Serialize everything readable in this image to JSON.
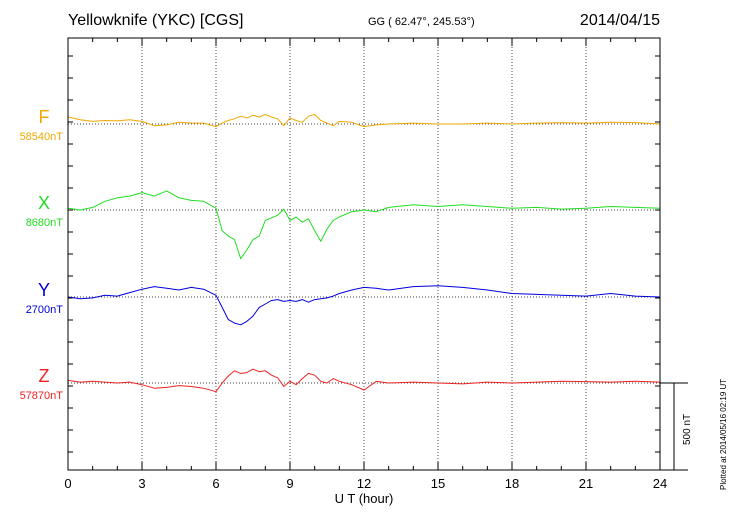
{
  "header": {
    "station": "Yellowknife (YKC)  [CGS]",
    "coordinates": "GG ( 62.47°, 245.53°)",
    "date": "2014/04/15"
  },
  "plotted_note": "Plotted at 2014/05/16 02:19 UT",
  "scale_bar_label": "500 nT",
  "chart_data": {
    "type": "line",
    "xlabel": "U T (hour)",
    "xlim": [
      0,
      24
    ],
    "xticks": [
      0,
      3,
      6,
      9,
      12,
      15,
      18,
      21,
      24
    ],
    "ylabel": "",
    "y_units": "nT offset from baseline",
    "scale_bar_nT": 500,
    "grid": true,
    "series": [
      {
        "name": "F",
        "baseline_label": "58540nT",
        "baseline_nT": 58540,
        "color": "#f0a800",
        "x": [
          0,
          0.5,
          1,
          1.5,
          2,
          2.5,
          3,
          3.5,
          4,
          4.5,
          5,
          5.5,
          6,
          6.25,
          6.5,
          6.75,
          7,
          7.25,
          7.5,
          7.75,
          8,
          8.25,
          8.5,
          8.75,
          9,
          9.25,
          9.5,
          9.75,
          10,
          10.25,
          10.5,
          10.75,
          11,
          11.5,
          12,
          12.5,
          13,
          14,
          15,
          16,
          17,
          18,
          19,
          20,
          21,
          22,
          23,
          24
        ],
        "values": [
          40,
          25,
          15,
          20,
          18,
          25,
          15,
          -10,
          -5,
          10,
          5,
          5,
          -15,
          5,
          20,
          30,
          45,
          35,
          50,
          40,
          55,
          40,
          30,
          -10,
          35,
          20,
          10,
          45,
          55,
          20,
          5,
          -10,
          15,
          10,
          -15,
          -5,
          0,
          5,
          0,
          0,
          5,
          0,
          5,
          8,
          5,
          10,
          8,
          0
        ]
      },
      {
        "name": "X",
        "baseline_label": "8680nT",
        "baseline_nT": 8680,
        "color": "#22dd22",
        "x": [
          0,
          0.5,
          1,
          1.5,
          2,
          2.5,
          3,
          3.5,
          4,
          4.5,
          5,
          5.5,
          6,
          6.25,
          6.5,
          6.75,
          7,
          7.25,
          7.5,
          7.75,
          8,
          8.25,
          8.5,
          8.75,
          9,
          9.25,
          9.5,
          9.75,
          10,
          10.25,
          10.5,
          10.75,
          11,
          11.5,
          12,
          12.5,
          13,
          14,
          15,
          16,
          17,
          18,
          19,
          20,
          21,
          22,
          23,
          24
        ],
        "values": [
          10,
          0,
          15,
          50,
          70,
          80,
          100,
          80,
          110,
          70,
          55,
          50,
          10,
          -120,
          -150,
          -170,
          -280,
          -230,
          -170,
          -150,
          -60,
          -45,
          -30,
          5,
          -60,
          -40,
          -70,
          -50,
          -120,
          -180,
          -110,
          -60,
          -40,
          -10,
          0,
          -10,
          15,
          30,
          20,
          30,
          20,
          10,
          15,
          5,
          10,
          20,
          15,
          10
        ]
      },
      {
        "name": "Y",
        "baseline_label": "2700nT",
        "baseline_nT": 2700,
        "color": "#0000dd",
        "x": [
          0,
          0.5,
          1,
          1.5,
          2,
          2.5,
          3,
          3.5,
          4,
          4.5,
          5,
          5.5,
          6,
          6.25,
          6.5,
          6.75,
          7,
          7.25,
          7.5,
          7.75,
          8,
          8.25,
          8.5,
          8.75,
          9,
          9.25,
          9.5,
          9.75,
          10,
          10.25,
          10.5,
          10.75,
          11,
          11.5,
          12,
          12.5,
          13,
          14,
          15,
          16,
          17,
          18,
          19,
          20,
          21,
          22,
          23,
          24
        ],
        "values": [
          0,
          -10,
          -5,
          10,
          5,
          25,
          45,
          60,
          50,
          40,
          55,
          45,
          10,
          -60,
          -130,
          -150,
          -160,
          -140,
          -110,
          -60,
          -40,
          -20,
          -15,
          -25,
          -20,
          -25,
          -15,
          -30,
          -15,
          -10,
          -5,
          5,
          20,
          40,
          55,
          50,
          40,
          60,
          65,
          55,
          40,
          20,
          15,
          10,
          5,
          20,
          5,
          0
        ]
      },
      {
        "name": "Z",
        "baseline_label": "57870nT",
        "baseline_nT": 57870,
        "color": "#ee2222",
        "x": [
          0,
          0.5,
          1,
          1.5,
          2,
          2.5,
          3,
          3.5,
          4,
          4.5,
          5,
          5.5,
          6,
          6.25,
          6.5,
          6.75,
          7,
          7.25,
          7.5,
          7.75,
          8,
          8.25,
          8.5,
          8.75,
          9,
          9.25,
          9.5,
          9.75,
          10,
          10.25,
          10.5,
          10.75,
          11,
          11.5,
          12,
          12.5,
          13,
          14,
          15,
          16,
          17,
          18,
          19,
          20,
          21,
          22,
          23,
          24
        ],
        "values": [
          15,
          5,
          10,
          5,
          0,
          5,
          -10,
          -30,
          -25,
          -15,
          -20,
          -30,
          -50,
          0,
          40,
          70,
          55,
          60,
          80,
          65,
          70,
          45,
          30,
          -20,
          10,
          -10,
          25,
          55,
          45,
          10,
          0,
          25,
          10,
          -10,
          -40,
          10,
          0,
          5,
          0,
          -5,
          5,
          0,
          5,
          10,
          8,
          5,
          10,
          5
        ]
      }
    ]
  }
}
